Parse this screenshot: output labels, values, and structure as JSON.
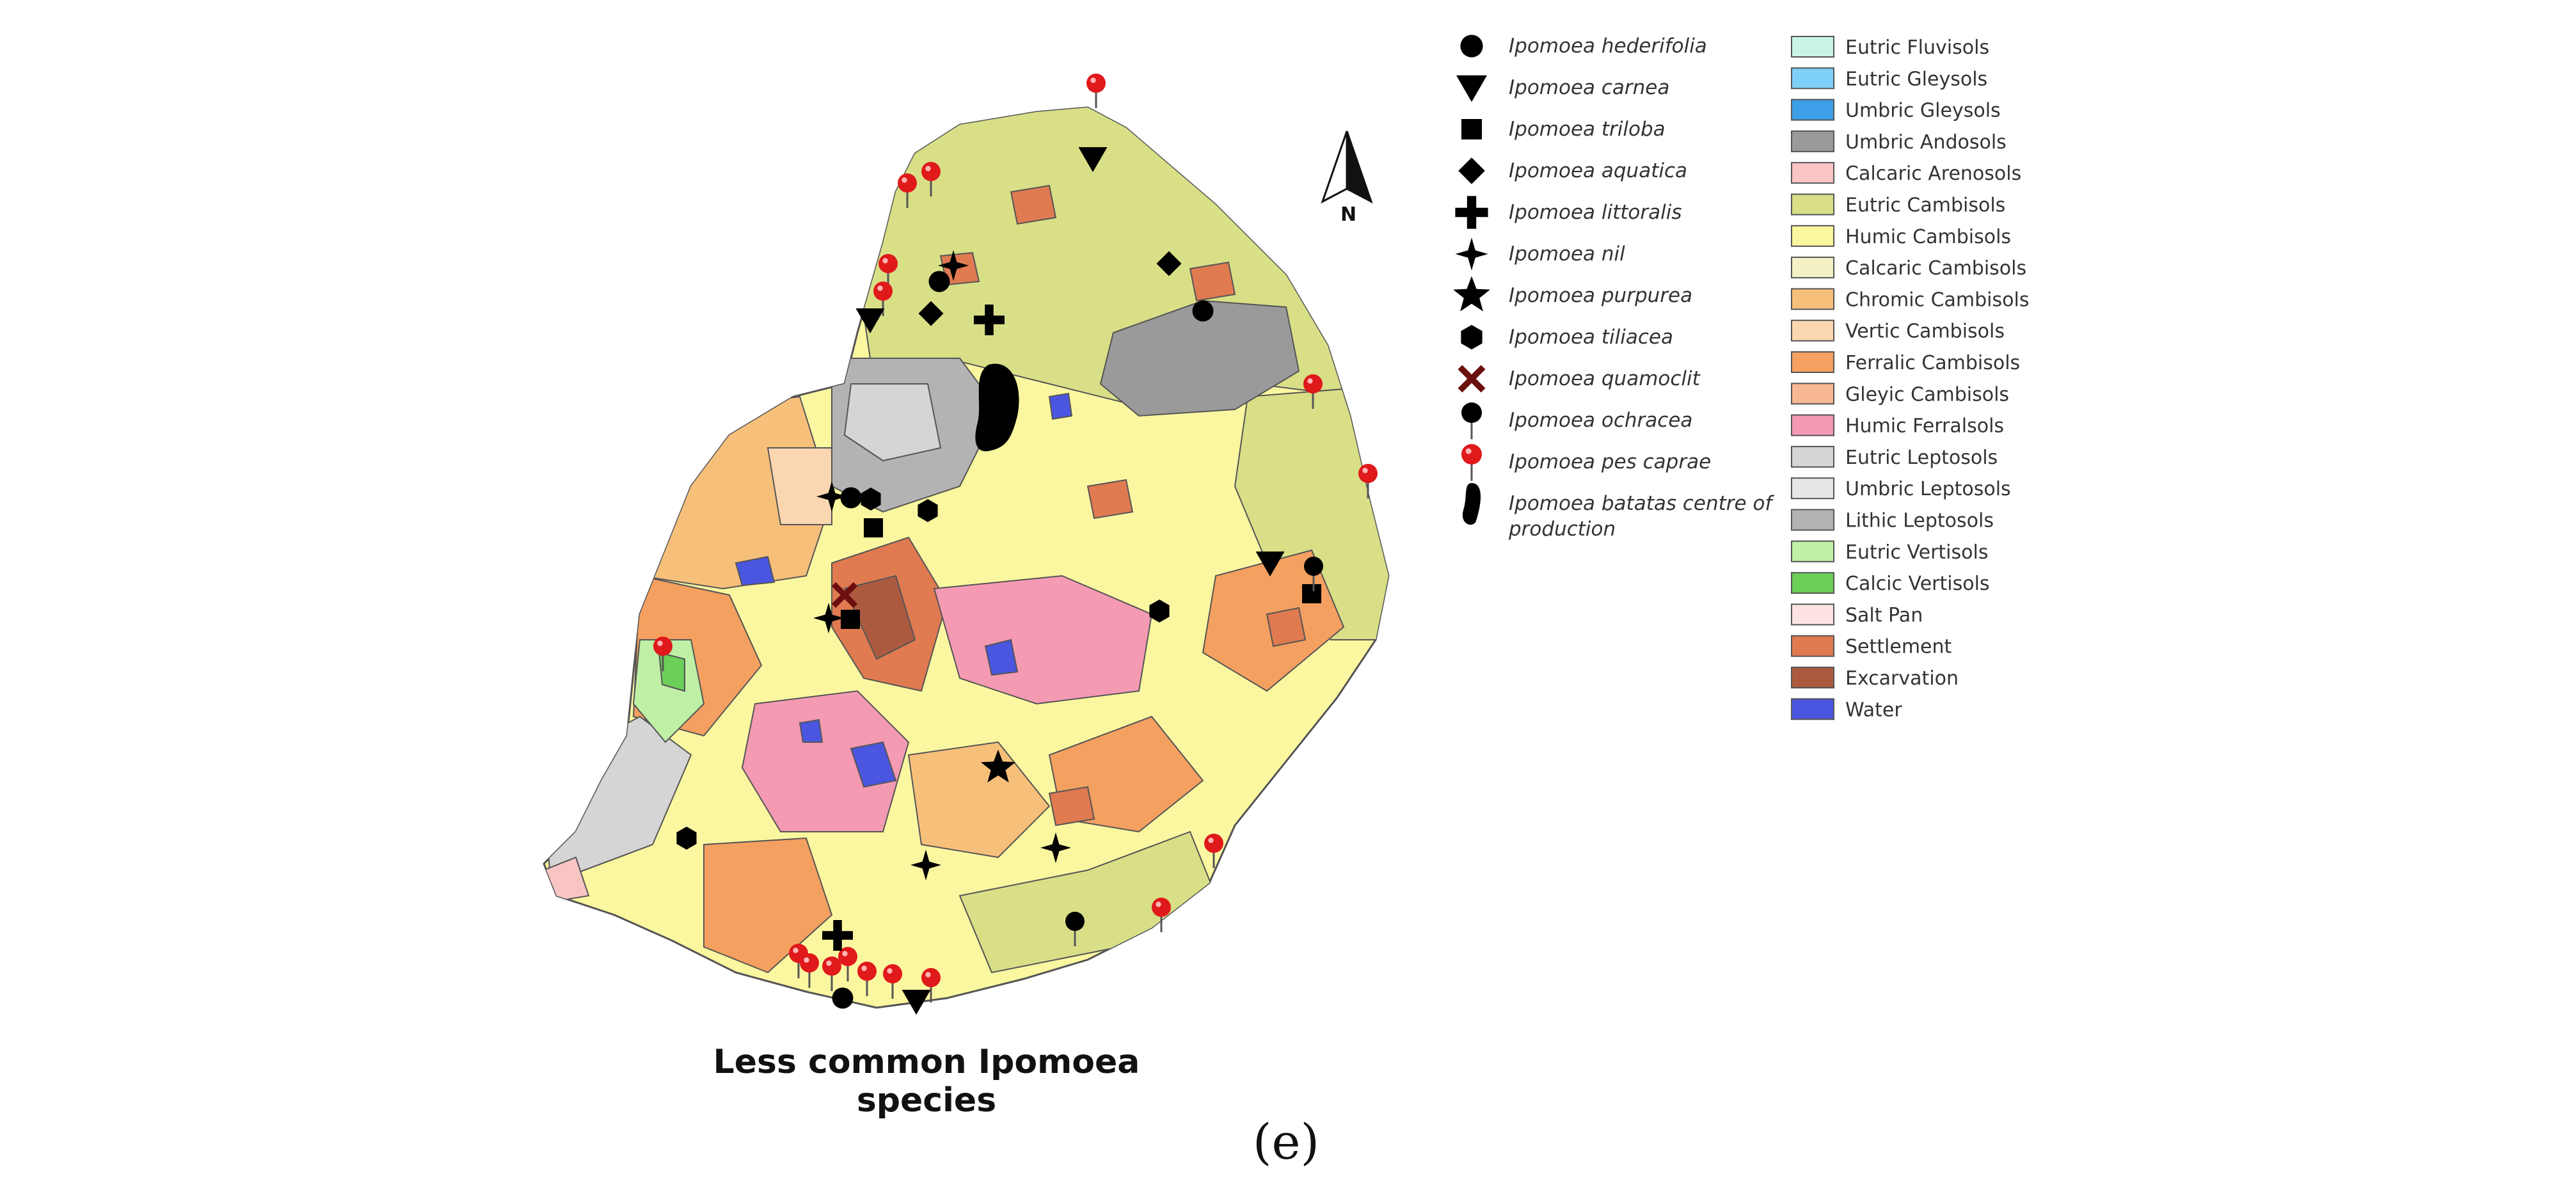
{
  "caption": "Less common Ipomoea species",
  "panel_label": "(e)",
  "north_arrow": "N",
  "species_legend": [
    {
      "label": "Ipomoea hederifolia",
      "symbol": "circle-icon",
      "color": "#000000"
    },
    {
      "label": "Ipomoea carnea",
      "symbol": "triangle-down-icon",
      "color": "#000000"
    },
    {
      "label": "Ipomoea triloba",
      "symbol": "square-icon",
      "color": "#000000"
    },
    {
      "label": "Ipomoea aquatica",
      "symbol": "diamond-icon",
      "color": "#000000"
    },
    {
      "label": "Ipomoea littoralis",
      "symbol": "plus-icon",
      "color": "#000000"
    },
    {
      "label": "Ipomoea nil",
      "symbol": "four-point-star-icon",
      "color": "#000000"
    },
    {
      "label": "Ipomoea purpurea",
      "symbol": "star-icon",
      "color": "#000000"
    },
    {
      "label": "Ipomoea tiliacea",
      "symbol": "hexagon-icon",
      "color": "#000000"
    },
    {
      "label": "Ipomoea quamoclit",
      "symbol": "cross-icon",
      "color": "#6b0f0f"
    },
    {
      "label": "Ipomoea ochracea",
      "symbol": "black-pin-icon",
      "color": "#000000"
    },
    {
      "label": "Ipomoea pes caprae",
      "symbol": "red-pin-icon",
      "color": "#e0191b"
    },
    {
      "label": "Ipomoea batatas centre of",
      "label2": "production",
      "symbol": "blob-icon",
      "color": "#000000"
    }
  ],
  "soil_legend": [
    {
      "label": "Eutric Fluvisols",
      "color": "#c9f4e8"
    },
    {
      "label": "Eutric Gleysols",
      "color": "#7fd0f8"
    },
    {
      "label": "Umbric Gleysols",
      "color": "#3d9fe8"
    },
    {
      "label": "Umbric Andosols",
      "color": "#9a9a9a"
    },
    {
      "label": "Calcaric Arenosols",
      "color": "#f9c4c4"
    },
    {
      "label": "Eutric Cambisols",
      "color": "#d8df87"
    },
    {
      "label": "Humic Cambisols",
      "color": "#fbf7a0"
    },
    {
      "label": "Calcaric Cambisols",
      "color": "#f4f1c6"
    },
    {
      "label": "Chromic Cambisols",
      "color": "#f7c07a"
    },
    {
      "label": "Vertic Cambisols",
      "color": "#fbd7b1"
    },
    {
      "label": "Ferralic Cambisols",
      "color": "#f4a060"
    },
    {
      "label": "Gleyic Cambisols",
      "color": "#f7b792"
    },
    {
      "label": "Humic Ferralsols",
      "color": "#f49ab2"
    },
    {
      "label": "Eutric Leptosols",
      "color": "#d5d5d5"
    },
    {
      "label": "Umbric Leptosols",
      "color": "#e6e6e6"
    },
    {
      "label": "Lithic Leptosols",
      "color": "#b3b3b3"
    },
    {
      "label": "Eutric Vertisols",
      "color": "#bff0a6"
    },
    {
      "label": "Calcic Vertisols",
      "color": "#6bcf58"
    },
    {
      "label": "Salt Pan",
      "color": "#fde3e3"
    },
    {
      "label": "Settlement",
      "color": "#e07a50"
    },
    {
      "label": "Excarvation",
      "color": "#ab5a3f"
    },
    {
      "label": "Water",
      "color": "#4a56e0"
    }
  ]
}
